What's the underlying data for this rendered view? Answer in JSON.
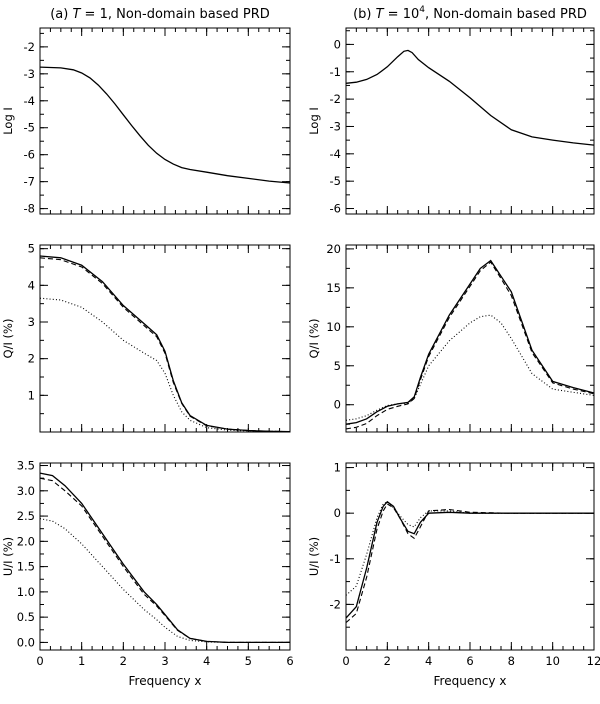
{
  "columns": [
    {
      "title_prefix": "(a) ",
      "title_T": "T",
      "title_eq": " = 1,",
      "title_sup": "",
      "title_suffix": " Non-domain based PRD"
    },
    {
      "title_prefix": "(b) ",
      "title_T": "T",
      "title_eq": " = 10",
      "title_sup": "4",
      "title_suffix": ", Non-domain based PRD"
    }
  ],
  "chart_data": [
    {
      "type": "line",
      "panel": "a-top",
      "ylabel": "Log I",
      "xlim": [
        0,
        6
      ],
      "ylim": [
        -8.2,
        -1.3
      ],
      "xticks": [
        0,
        1,
        2,
        3,
        4,
        5,
        6
      ],
      "yticks": [
        -8,
        -7,
        -6,
        -5,
        -4,
        -3,
        -2
      ],
      "yticklabels": [
        "-8",
        "-7",
        "-6",
        "-5",
        "-4",
        "-3",
        "-2"
      ],
      "series": [
        {
          "style": "solid",
          "x": [
            0,
            0.5,
            0.8,
            1.0,
            1.2,
            1.4,
            1.6,
            1.8,
            2.0,
            2.2,
            2.4,
            2.6,
            2.8,
            3.0,
            3.2,
            3.4,
            3.6,
            4,
            4.5,
            5,
            5.5,
            6
          ],
          "y": [
            -2.75,
            -2.78,
            -2.85,
            -2.97,
            -3.15,
            -3.42,
            -3.75,
            -4.12,
            -4.52,
            -4.92,
            -5.3,
            -5.65,
            -5.95,
            -6.18,
            -6.35,
            -6.48,
            -6.55,
            -6.65,
            -6.78,
            -6.88,
            -6.98,
            -7.05
          ]
        }
      ]
    },
    {
      "type": "line",
      "panel": "b-top",
      "ylabel": "Log I",
      "xlim": [
        0,
        12
      ],
      "ylim": [
        -6.2,
        0.6
      ],
      "xticks": [
        0,
        2,
        4,
        6,
        8,
        10,
        12
      ],
      "yticks": [
        -6,
        -5,
        -4,
        -3,
        -2,
        -1,
        0
      ],
      "yticklabels": [
        "-6",
        "-5",
        "-4",
        "-3",
        "-2",
        "-1",
        "0"
      ],
      "series": [
        {
          "style": "solid",
          "x": [
            0,
            0.5,
            1,
            1.5,
            2,
            2.5,
            2.8,
            3.0,
            3.2,
            3.5,
            4,
            5,
            6,
            7,
            8,
            9,
            10,
            11,
            12
          ],
          "y": [
            -1.42,
            -1.38,
            -1.28,
            -1.1,
            -0.82,
            -0.45,
            -0.25,
            -0.22,
            -0.3,
            -0.55,
            -0.85,
            -1.35,
            -1.95,
            -2.6,
            -3.12,
            -3.38,
            -3.5,
            -3.6,
            -3.68
          ]
        }
      ]
    },
    {
      "type": "line",
      "panel": "a-mid",
      "ylabel": "Q/I (%)",
      "xlim": [
        0,
        6
      ],
      "ylim": [
        0,
        5.1
      ],
      "xticks": [
        0,
        1,
        2,
        3,
        4,
        5,
        6
      ],
      "yticks": [
        1,
        2,
        3,
        4,
        5
      ],
      "yticklabels": [
        "1",
        "2",
        "3",
        "4",
        "5"
      ],
      "series": [
        {
          "style": "solid",
          "x": [
            0,
            0.5,
            1,
            1.5,
            2,
            2.5,
            2.8,
            3,
            3.2,
            3.4,
            3.6,
            4,
            4.5,
            5,
            5.5,
            6
          ],
          "y": [
            4.8,
            4.75,
            4.55,
            4.1,
            3.45,
            2.95,
            2.65,
            2.2,
            1.4,
            0.8,
            0.45,
            0.18,
            0.08,
            0.04,
            0.02,
            0.01
          ]
        },
        {
          "style": "dashed",
          "x": [
            0,
            0.5,
            1,
            1.5,
            2,
            2.5,
            2.8,
            3,
            3.2,
            3.4,
            3.6,
            4,
            4.5,
            5,
            5.5,
            6
          ],
          "y": [
            4.75,
            4.7,
            4.5,
            4.05,
            3.4,
            2.9,
            2.6,
            2.15,
            1.35,
            0.78,
            0.43,
            0.17,
            0.08,
            0.04,
            0.02,
            0.01
          ]
        },
        {
          "style": "dotted",
          "x": [
            0,
            0.5,
            1,
            1.5,
            2,
            2.5,
            2.8,
            3,
            3.2,
            3.4,
            3.6,
            4,
            4.5,
            5,
            5.5,
            6
          ],
          "y": [
            3.65,
            3.6,
            3.4,
            3.0,
            2.5,
            2.15,
            1.95,
            1.6,
            1.0,
            0.55,
            0.32,
            0.12,
            0.05,
            0.03,
            0.02,
            0.01
          ]
        }
      ]
    },
    {
      "type": "line",
      "panel": "b-mid",
      "ylabel": "Q/I (%)",
      "xlim": [
        0,
        12
      ],
      "ylim": [
        -3.5,
        20.5
      ],
      "xticks": [
        0,
        2,
        4,
        6,
        8,
        10,
        12
      ],
      "yticks": [
        0,
        5,
        10,
        15,
        20
      ],
      "yticklabels": [
        "0",
        "5",
        "10",
        "15",
        "20"
      ],
      "series": [
        {
          "style": "solid",
          "x": [
            0,
            0.5,
            1,
            1.5,
            2,
            2.5,
            3,
            3.3,
            3.6,
            4,
            5,
            6,
            6.5,
            7,
            7.5,
            8,
            9,
            10,
            11,
            12
          ],
          "y": [
            -2.5,
            -2.3,
            -1.8,
            -0.9,
            -0.2,
            0.1,
            0.3,
            1.0,
            3.5,
            6.5,
            11.5,
            15.5,
            17.5,
            18.5,
            16.5,
            14.5,
            7.0,
            3.0,
            2.2,
            1.5
          ]
        },
        {
          "style": "dashed",
          "x": [
            0,
            0.5,
            1,
            1.5,
            2,
            2.5,
            3,
            3.3,
            3.6,
            4,
            5,
            6,
            6.5,
            7,
            7.5,
            8,
            9,
            10,
            11,
            12
          ],
          "y": [
            -3.1,
            -2.9,
            -2.4,
            -1.4,
            -0.6,
            -0.2,
            0.1,
            0.8,
            3.2,
            6.2,
            11.2,
            15.2,
            17.2,
            18.3,
            16.2,
            14.0,
            6.7,
            2.8,
            2.0,
            1.4
          ]
        },
        {
          "style": "dotted",
          "x": [
            0,
            0.5,
            1,
            1.5,
            2,
            2.5,
            3,
            3.3,
            3.6,
            4,
            5,
            6,
            6.5,
            7,
            7.5,
            8,
            9,
            10,
            11,
            12
          ],
          "y": [
            -2.0,
            -1.8,
            -1.4,
            -0.7,
            -0.1,
            0.1,
            0.2,
            0.8,
            2.6,
            5.0,
            8.2,
            10.5,
            11.3,
            11.5,
            10.5,
            8.5,
            4.0,
            2.0,
            1.6,
            1.2
          ]
        }
      ]
    },
    {
      "type": "line",
      "panel": "a-bot",
      "ylabel": "U/I (%)",
      "xlabel": "Frequency x",
      "xlim": [
        0,
        6
      ],
      "ylim": [
        -0.15,
        3.55
      ],
      "xticks": [
        0,
        1,
        2,
        3,
        4,
        5,
        6
      ],
      "yticks": [
        0.0,
        0.5,
        1.0,
        1.5,
        2.0,
        2.5,
        3.0,
        3.5
      ],
      "yticklabels": [
        "0.0",
        "0.5",
        "1.0",
        "1.5",
        "2.0",
        "2.5",
        "3.0",
        "3.5"
      ],
      "series": [
        {
          "style": "solid",
          "x": [
            0,
            0.3,
            0.6,
            1,
            1.5,
            2,
            2.5,
            2.8,
            3,
            3.3,
            3.6,
            4,
            4.5,
            5,
            5.5,
            6
          ],
          "y": [
            3.35,
            3.3,
            3.1,
            2.75,
            2.15,
            1.55,
            1.0,
            0.75,
            0.55,
            0.25,
            0.08,
            0.02,
            0.0,
            0.0,
            0.0,
            0.0
          ]
        },
        {
          "style": "dashed",
          "x": [
            0,
            0.3,
            0.6,
            1,
            1.5,
            2,
            2.5,
            2.8,
            3,
            3.3,
            3.6,
            4,
            4.5,
            5,
            5.5,
            6
          ],
          "y": [
            3.25,
            3.2,
            3.0,
            2.7,
            2.1,
            1.5,
            0.95,
            0.72,
            0.53,
            0.24,
            0.08,
            0.02,
            0.0,
            0.0,
            0.0,
            0.0
          ]
        },
        {
          "style": "dotted",
          "x": [
            0,
            0.3,
            0.6,
            1,
            1.5,
            2,
            2.5,
            2.8,
            3,
            3.3,
            3.6,
            4,
            4.5,
            5,
            5.5,
            6
          ],
          "y": [
            2.45,
            2.4,
            2.25,
            1.95,
            1.5,
            1.05,
            0.65,
            0.45,
            0.3,
            0.12,
            0.04,
            0.01,
            0.0,
            0.0,
            0.0,
            0.0
          ]
        }
      ]
    },
    {
      "type": "line",
      "panel": "b-bot",
      "ylabel": "U/I (%)",
      "xlabel": "Frequency x",
      "xlim": [
        0,
        12
      ],
      "ylim": [
        -3.0,
        1.1
      ],
      "xticks": [
        0,
        2,
        4,
        6,
        8,
        10,
        12
      ],
      "yticks": [
        -2,
        -1,
        0,
        1
      ],
      "yticklabels": [
        "-2",
        "-1",
        "0",
        "1"
      ],
      "series": [
        {
          "style": "solid",
          "x": [
            0,
            0.5,
            1,
            1.5,
            1.8,
            2,
            2.3,
            2.6,
            3,
            3.3,
            3.6,
            4,
            5,
            6,
            8,
            10,
            12
          ],
          "y": [
            -2.3,
            -2.05,
            -1.2,
            -0.2,
            0.15,
            0.25,
            0.15,
            -0.1,
            -0.4,
            -0.45,
            -0.2,
            0.0,
            0.02,
            0.0,
            0.0,
            0.0,
            0.0
          ]
        },
        {
          "style": "dashed",
          "x": [
            0,
            0.5,
            1,
            1.5,
            1.8,
            2,
            2.3,
            2.6,
            3,
            3.3,
            3.6,
            4,
            5,
            6,
            8,
            10,
            12
          ],
          "y": [
            -2.4,
            -2.2,
            -1.4,
            -0.35,
            0.05,
            0.2,
            0.12,
            -0.1,
            -0.45,
            -0.55,
            -0.3,
            0.05,
            0.08,
            0.02,
            0.0,
            0.0,
            0.0
          ]
        },
        {
          "style": "dotted",
          "x": [
            0,
            0.5,
            1,
            1.5,
            1.8,
            2,
            2.3,
            2.6,
            3,
            3.3,
            3.6,
            4,
            5,
            6,
            8,
            10,
            12
          ],
          "y": [
            -1.8,
            -1.6,
            -0.9,
            -0.1,
            0.2,
            0.25,
            0.12,
            -0.05,
            -0.25,
            -0.3,
            -0.1,
            0.05,
            0.05,
            0.0,
            0.0,
            0.0,
            0.0
          ]
        }
      ]
    }
  ]
}
